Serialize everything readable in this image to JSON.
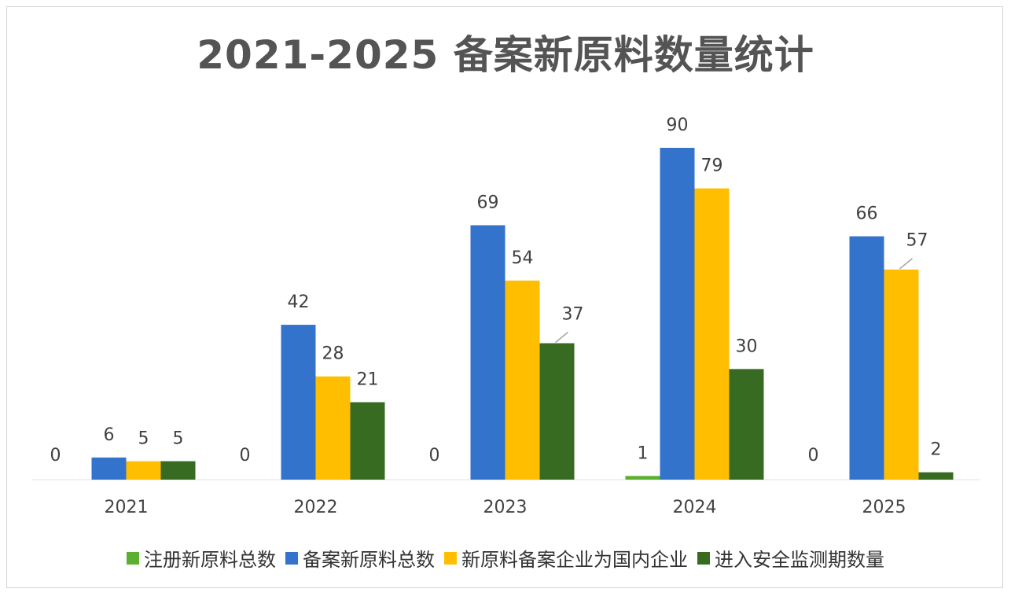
{
  "chart_data": {
    "type": "bar",
    "title": "2021-2025 备案新原料数量统计",
    "categories": [
      "2021",
      "2022",
      "2023",
      "2024",
      "2025"
    ],
    "series": [
      {
        "name": "注册新原料总数",
        "color": "#5bb030",
        "values": [
          0,
          0,
          0,
          1,
          0
        ]
      },
      {
        "name": "备案新原料总数",
        "color": "#3373cc",
        "values": [
          6,
          42,
          69,
          90,
          66
        ]
      },
      {
        "name": "新原料备案企业为国内企业",
        "color": "#ffbf00",
        "values": [
          5,
          28,
          54,
          79,
          57
        ]
      },
      {
        "name": "进入安全监测期数量",
        "color": "#376b22",
        "values": [
          5,
          21,
          37,
          30,
          2
        ]
      }
    ],
    "ylim": [
      0,
      90
    ],
    "grid": false,
    "legend": "bottom",
    "xlabel": "",
    "ylabel": ""
  }
}
